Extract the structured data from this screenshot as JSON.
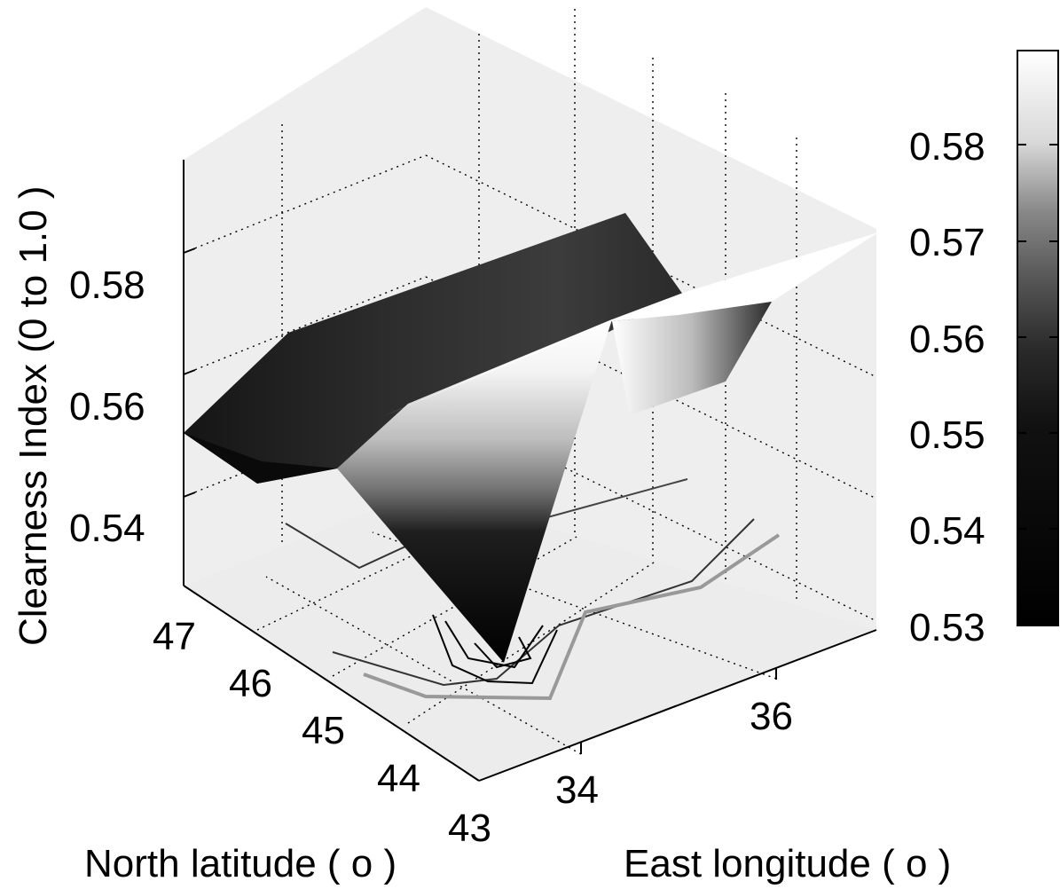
{
  "chart_data": {
    "type": "surface3d",
    "title": "",
    "xlabel": "North latitude ( o )",
    "ylabel": "East longitude ( o )",
    "zlabel": "Clearness Index (0 to 1.0 )",
    "x_ticks": [
      "47",
      "46",
      "45",
      "44",
      "43"
    ],
    "y_ticks": [
      "34",
      "36"
    ],
    "z_ticks": [
      "0.58",
      "0.56",
      "0.54"
    ],
    "zlim": [
      0.53,
      0.59
    ],
    "colorbar": {
      "ticks": [
        "0.58",
        "0.57",
        "0.56",
        "0.55",
        "0.54",
        "0.53"
      ],
      "range": [
        0.53,
        0.588
      ],
      "colormap": "gray"
    },
    "grid": true,
    "surface_samples": [
      {
        "lat": 47,
        "lon": 32,
        "value": 0.553
      },
      {
        "lat": 47,
        "lon": 36,
        "value": 0.575
      },
      {
        "lat": 45,
        "lon": 34,
        "value": 0.55
      },
      {
        "lat": 44,
        "lon": 34,
        "value": 0.586
      },
      {
        "lat": 43,
        "lon": 34,
        "value": 0.534
      },
      {
        "lat": 43,
        "lon": 37,
        "value": 0.588
      }
    ]
  }
}
